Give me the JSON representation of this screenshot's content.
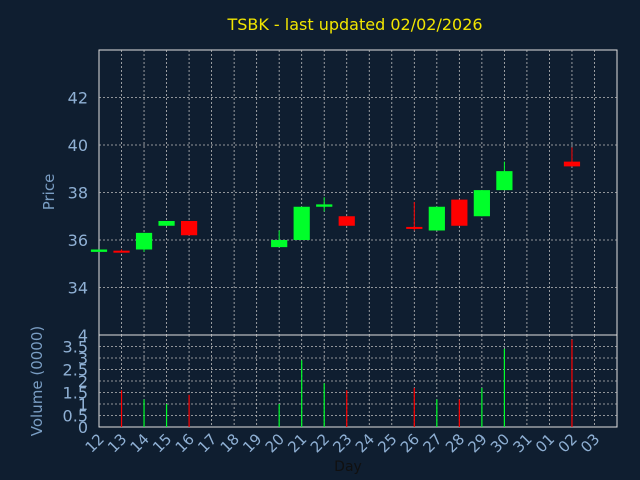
{
  "chart_data": {
    "type": "candlestick",
    "title": "TSBK - last updated 02/02/2026",
    "xlabel": "Day",
    "price_ylabel": "Price",
    "volume_ylabel": "Volume (0000)",
    "x_ticks": [
      "12",
      "13",
      "14",
      "15",
      "16",
      "17",
      "18",
      "19",
      "20",
      "21",
      "22",
      "23",
      "24",
      "25",
      "26",
      "27",
      "28",
      "29",
      "30",
      "31",
      "01",
      "02",
      "03"
    ],
    "price_yticks": [
      "34",
      "36",
      "38",
      "40",
      "42"
    ],
    "price_ylim": [
      32.0,
      44.0
    ],
    "volume_yticks": [
      "0",
      "0.5",
      "1",
      "1.5",
      "2",
      "2.5",
      "3",
      "3.5",
      "4"
    ],
    "volume_ylim": [
      0,
      4
    ],
    "grid": true,
    "colors": {
      "up": "#00ff2a",
      "down": "#ff0000",
      "grid": "#bcbcbc",
      "background": "#0f1e30",
      "plot": "#0f1e30",
      "title": "#f2e600"
    },
    "candles": [
      {
        "day": "12",
        "open": 35.5,
        "close": 35.6,
        "high": 35.6,
        "low": 35.5,
        "volume": 0.0
      },
      {
        "day": "13",
        "open": 35.55,
        "close": 35.5,
        "high": 35.6,
        "low": 35.5,
        "volume": 1.6
      },
      {
        "day": "14",
        "open": 35.6,
        "close": 36.3,
        "high": 36.3,
        "low": 35.5,
        "volume": 1.2
      },
      {
        "day": "15",
        "open": 36.6,
        "close": 36.8,
        "high": 36.8,
        "low": 36.6,
        "volume": 1.0
      },
      {
        "day": "16",
        "open": 36.8,
        "close": 36.2,
        "high": 36.8,
        "low": 36.2,
        "volume": 1.4
      },
      {
        "day": "20",
        "open": 35.7,
        "close": 36.0,
        "high": 36.4,
        "low": 35.7,
        "volume": 1.0
      },
      {
        "day": "21",
        "open": 36.0,
        "close": 37.4,
        "high": 37.4,
        "low": 36.0,
        "volume": 2.9
      },
      {
        "day": "22",
        "open": 37.4,
        "close": 37.5,
        "high": 37.8,
        "low": 37.2,
        "volume": 1.9
      },
      {
        "day": "23",
        "open": 37.0,
        "close": 36.6,
        "high": 37.0,
        "low": 36.6,
        "volume": 1.6
      },
      {
        "day": "26",
        "open": 36.55,
        "close": 36.5,
        "high": 37.6,
        "low": 36.4,
        "volume": 1.7
      },
      {
        "day": "27",
        "open": 36.4,
        "close": 37.4,
        "high": 37.4,
        "low": 36.4,
        "volume": 1.2
      },
      {
        "day": "28",
        "open": 37.7,
        "close": 36.6,
        "high": 37.7,
        "low": 36.6,
        "volume": 1.2
      },
      {
        "day": "29",
        "open": 37.0,
        "close": 38.1,
        "high": 38.1,
        "low": 37.0,
        "volume": 1.7
      },
      {
        "day": "30",
        "open": 38.1,
        "close": 38.9,
        "high": 39.3,
        "low": 38.1,
        "volume": 3.4
      },
      {
        "day": "02",
        "open": 39.3,
        "close": 39.1,
        "high": 39.9,
        "low": 39.1,
        "volume": 3.8
      }
    ]
  }
}
